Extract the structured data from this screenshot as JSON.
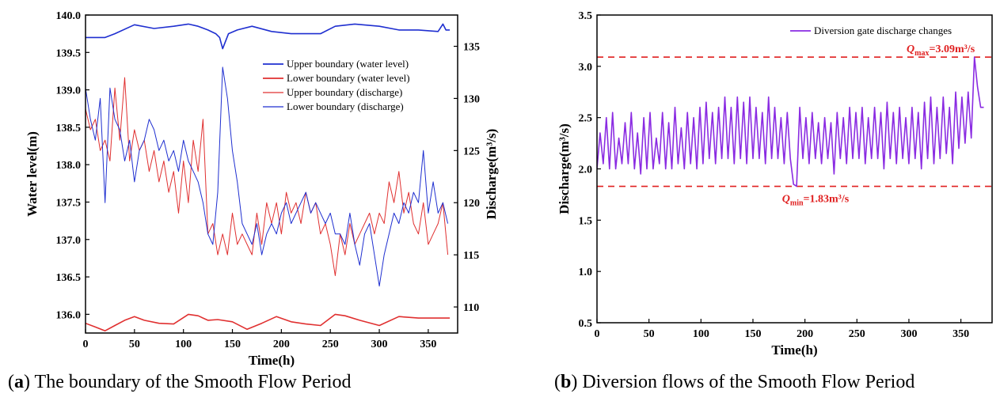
{
  "captions": [
    {
      "label": "a",
      "text": ") The boundary of the Smooth Flow Period"
    },
    {
      "label": "b",
      "text": ") Diversion flows of the Smooth Flow Period"
    }
  ],
  "chart_data": [
    {
      "type": "line",
      "xlabel": "Time(h)",
      "ylabel": "Water level(m)",
      "y2label": "Discharge(m³/s)",
      "xlim": [
        0,
        380
      ],
      "ylim": [
        135.75,
        140.0
      ],
      "y2lim": [
        107.5,
        138.0
      ],
      "xticks": [
        0,
        50,
        100,
        150,
        200,
        250,
        300,
        350
      ],
      "yticks": [
        136.0,
        136.5,
        137.0,
        137.5,
        138.0,
        138.5,
        139.0,
        139.5,
        140.0
      ],
      "y2ticks": [
        110,
        115,
        120,
        125,
        130,
        135
      ],
      "legend_position": "upper-right",
      "series": [
        {
          "name": "Upper boundary (water level)",
          "axis": "left",
          "color": "#1f2fd0",
          "x": [
            0,
            20,
            30,
            50,
            70,
            90,
            105,
            115,
            125,
            133,
            137,
            140,
            146,
            155,
            170,
            190,
            210,
            240,
            255,
            275,
            300,
            320,
            340,
            360,
            365,
            368,
            372
          ],
          "y": [
            139.7,
            139.7,
            139.75,
            139.87,
            139.82,
            139.85,
            139.88,
            139.85,
            139.8,
            139.75,
            139.7,
            139.55,
            139.75,
            139.8,
            139.85,
            139.78,
            139.75,
            139.75,
            139.85,
            139.88,
            139.85,
            139.8,
            139.8,
            139.78,
            139.88,
            139.8,
            139.8
          ]
        },
        {
          "name": "Lower boundary (water level)",
          "axis": "left",
          "color": "#e03030",
          "x": [
            0,
            10,
            20,
            30,
            40,
            50,
            60,
            75,
            90,
            105,
            115,
            125,
            135,
            150,
            165,
            180,
            195,
            210,
            225,
            240,
            255,
            265,
            280,
            300,
            320,
            340,
            360,
            372
          ],
          "y": [
            135.88,
            135.83,
            135.78,
            135.85,
            135.92,
            135.97,
            135.92,
            135.88,
            135.87,
            136.0,
            135.98,
            135.92,
            135.93,
            135.9,
            135.8,
            135.88,
            135.97,
            135.9,
            135.87,
            135.85,
            136.0,
            135.98,
            135.92,
            135.85,
            135.97,
            135.95,
            135.95,
            135.95
          ]
        },
        {
          "name": "Upper boundary (discharge)",
          "axis": "right",
          "color": "#e03030",
          "thin": true,
          "x": [
            0,
            5,
            10,
            15,
            20,
            25,
            30,
            35,
            40,
            45,
            50,
            55,
            60,
            65,
            70,
            75,
            80,
            85,
            90,
            95,
            100,
            105,
            110,
            115,
            120,
            125,
            130,
            135,
            140,
            145,
            150,
            155,
            160,
            165,
            170,
            175,
            180,
            185,
            190,
            195,
            200,
            205,
            210,
            215,
            220,
            225,
            230,
            235,
            240,
            245,
            250,
            255,
            260,
            265,
            270,
            275,
            280,
            285,
            290,
            295,
            300,
            305,
            310,
            315,
            320,
            325,
            330,
            335,
            340,
            345,
            350,
            355,
            360,
            365,
            370
          ],
          "y": [
            129,
            127,
            128,
            125,
            126,
            124,
            131,
            126,
            132,
            124,
            127,
            125,
            126,
            123,
            125,
            122,
            124,
            121,
            123,
            119,
            124,
            120,
            126,
            123,
            128,
            117,
            118,
            115,
            117,
            115,
            119,
            116,
            117,
            116,
            115,
            119,
            116,
            120,
            118,
            120,
            117,
            121,
            119,
            120,
            118,
            121,
            119,
            120,
            117,
            118,
            116,
            113,
            117,
            115,
            118,
            116,
            117,
            118,
            119,
            117,
            119,
            118,
            122,
            120,
            123,
            119,
            121,
            118,
            117,
            120,
            116,
            117,
            118,
            120,
            115
          ]
        },
        {
          "name": "Lower boundary (discharge)",
          "axis": "right",
          "color": "#1f2fd0",
          "thin": true,
          "x": [
            0,
            5,
            10,
            15,
            20,
            25,
            30,
            35,
            40,
            45,
            50,
            55,
            60,
            65,
            70,
            75,
            80,
            85,
            90,
            95,
            100,
            105,
            110,
            115,
            120,
            125,
            130,
            135,
            140,
            145,
            150,
            155,
            160,
            165,
            170,
            175,
            180,
            185,
            190,
            195,
            200,
            205,
            210,
            215,
            220,
            225,
            230,
            235,
            240,
            245,
            250,
            255,
            260,
            265,
            270,
            275,
            280,
            285,
            290,
            295,
            300,
            305,
            310,
            315,
            320,
            325,
            330,
            335,
            340,
            345,
            350,
            355,
            360,
            365,
            370
          ],
          "y": [
            131,
            128,
            126,
            130,
            120,
            131,
            128,
            127,
            124,
            126,
            122,
            125,
            126,
            128,
            127,
            125,
            126,
            124,
            125,
            123,
            126,
            124,
            123,
            122,
            120,
            117,
            116,
            121,
            133,
            130,
            125,
            122,
            118,
            117,
            116,
            118,
            115,
            117,
            118,
            117,
            119,
            120,
            118,
            119,
            120,
            121,
            119,
            120,
            119,
            118,
            119,
            117,
            117,
            116,
            119,
            116,
            114,
            117,
            118,
            115,
            112,
            115,
            117,
            119,
            118,
            120,
            119,
            121,
            120,
            125,
            119,
            122,
            119,
            120,
            118
          ]
        }
      ]
    },
    {
      "type": "line",
      "xlabel": "Time(h)",
      "ylabel": "Discharge(m³/s)",
      "xlim": [
        0,
        380
      ],
      "ylim": [
        0.5,
        3.5
      ],
      "xticks": [
        0,
        50,
        100,
        150,
        200,
        250,
        300,
        350
      ],
      "yticks": [
        0.5,
        1.0,
        1.5,
        2.0,
        2.5,
        3.0,
        3.5
      ],
      "legend_position": "top-right",
      "series": [
        {
          "name": "Diversion gate discharge changes",
          "color": "#8a2be2",
          "x": [
            0,
            3,
            6,
            9,
            12,
            15,
            18,
            21,
            24,
            27,
            30,
            33,
            36,
            39,
            42,
            45,
            48,
            51,
            54,
            57,
            60,
            63,
            66,
            69,
            72,
            75,
            78,
            81,
            84,
            87,
            90,
            93,
            96,
            99,
            102,
            105,
            108,
            111,
            114,
            117,
            120,
            123,
            126,
            129,
            132,
            135,
            138,
            141,
            144,
            147,
            150,
            153,
            156,
            159,
            162,
            165,
            168,
            171,
            174,
            177,
            180,
            183,
            186,
            189,
            192,
            195,
            198,
            201,
            204,
            207,
            210,
            213,
            216,
            219,
            222,
            225,
            228,
            231,
            234,
            237,
            240,
            243,
            246,
            249,
            252,
            255,
            258,
            261,
            264,
            267,
            270,
            273,
            276,
            279,
            282,
            285,
            288,
            291,
            294,
            297,
            300,
            303,
            306,
            309,
            312,
            315,
            318,
            321,
            324,
            327,
            330,
            333,
            336,
            339,
            342,
            345,
            348,
            351,
            354,
            357,
            360,
            363,
            366,
            369,
            372
          ],
          "y": [
            2.0,
            2.35,
            2.05,
            2.5,
            2.0,
            2.55,
            2.0,
            2.3,
            2.05,
            2.45,
            2.05,
            2.55,
            2.0,
            2.35,
            1.95,
            2.5,
            2.0,
            2.55,
            2.0,
            2.3,
            2.05,
            2.55,
            2.0,
            2.45,
            2.0,
            2.6,
            2.05,
            2.4,
            2.0,
            2.55,
            2.05,
            2.5,
            2.0,
            2.6,
            2.05,
            2.65,
            2.1,
            2.55,
            2.05,
            2.6,
            2.1,
            2.7,
            2.1,
            2.6,
            2.05,
            2.7,
            2.1,
            2.65,
            2.05,
            2.7,
            2.1,
            2.6,
            2.1,
            2.55,
            2.05,
            2.7,
            2.1,
            2.6,
            2.1,
            2.5,
            2.05,
            2.55,
            2.1,
            1.85,
            1.83,
            2.6,
            2.1,
            2.5,
            2.05,
            2.55,
            2.1,
            2.45,
            2.05,
            2.5,
            2.1,
            2.45,
            1.95,
            2.55,
            2.1,
            2.5,
            2.05,
            2.6,
            2.1,
            2.55,
            2.1,
            2.6,
            2.05,
            2.5,
            2.1,
            2.6,
            2.1,
            2.55,
            2.0,
            2.65,
            2.1,
            2.55,
            2.05,
            2.6,
            2.1,
            2.5,
            2.05,
            2.6,
            2.1,
            2.55,
            2.0,
            2.65,
            2.1,
            2.7,
            2.05,
            2.6,
            2.1,
            2.7,
            2.15,
            2.6,
            2.05,
            2.75,
            2.2,
            2.7,
            2.25,
            2.75,
            2.3,
            3.09,
            2.8,
            2.6,
            2.6
          ]
        }
      ],
      "reference_lines": [
        {
          "label": "Qmax=3.09m³/s",
          "value": 3.09,
          "color": "#e02020"
        },
        {
          "label": "Qmin=1.83m³/s",
          "value": 1.83,
          "color": "#e02020"
        }
      ]
    }
  ]
}
